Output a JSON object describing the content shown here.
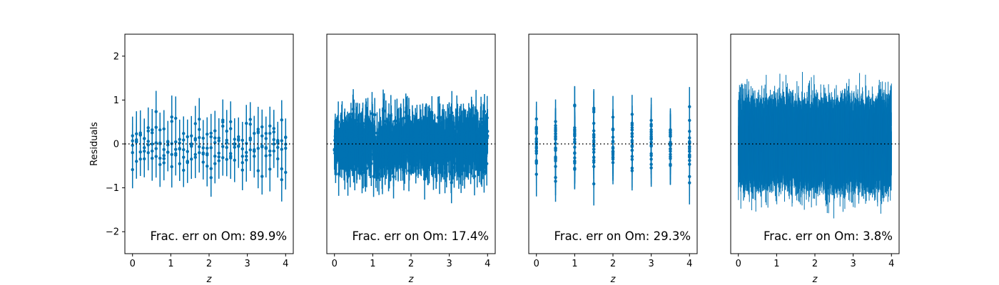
{
  "chart_data": [
    {
      "type": "scatter",
      "style": "errorbar",
      "xlabel": "z",
      "ylabel": "Residuals",
      "xlim": [
        -0.2,
        4.2
      ],
      "ylim": [
        -2.5,
        2.5
      ],
      "xticks": [
        "0",
        "1",
        "2",
        "3",
        "4"
      ],
      "yticks": [
        "−2",
        "−1",
        "0",
        "1",
        "2"
      ],
      "zero_line": "dotted",
      "annotation": "Frac. err on Om: 89.9%",
      "n_points": 200,
      "distinct_z": 40,
      "z_range": [
        0,
        4
      ],
      "errorbar_halfwidth_approx": 0.45,
      "residual_spread_approx": 0.5,
      "series_color": "#0072B2"
    },
    {
      "type": "scatter",
      "style": "errorbar",
      "xlabel": "z",
      "ylabel": "",
      "xlim": [
        -0.2,
        4.2
      ],
      "ylim": [
        -2.5,
        2.5
      ],
      "xticks": [
        "0",
        "1",
        "2",
        "3",
        "4"
      ],
      "zero_line": "dotted",
      "annotation": "Frac. err on Om: 17.4%",
      "n_points": 800,
      "distinct_z": 400,
      "z_range": [
        0,
        4
      ],
      "errorbar_halfwidth_approx": 0.45,
      "residual_spread_approx": 0.5,
      "series_color": "#0072B2"
    },
    {
      "type": "scatter",
      "style": "errorbar",
      "xlabel": "z",
      "ylabel": "",
      "xlim": [
        -0.2,
        4.2
      ],
      "ylim": [
        -2.5,
        2.5
      ],
      "xticks": [
        "0",
        "1",
        "2",
        "3",
        "4"
      ],
      "zero_line": "dotted",
      "annotation": "Frac. err on Om: 29.3%",
      "n_points": 200,
      "distinct_z": 9,
      "z_values": [
        0,
        0.5,
        1,
        1.5,
        2,
        2.5,
        3,
        3.5,
        4
      ],
      "errorbar_halfwidth_approx": 0.45,
      "residual_spread_approx": 0.5,
      "series_color": "#0072B2"
    },
    {
      "type": "scatter",
      "style": "errorbar",
      "xlabel": "z",
      "ylabel": "",
      "xlim": [
        -0.2,
        4.2
      ],
      "ylim": [
        -2.5,
        2.5
      ],
      "xticks": [
        "0",
        "1",
        "2",
        "3",
        "4"
      ],
      "zero_line": "dotted",
      "annotation": "Frac. err on Om: 3.8%",
      "n_points": 8000,
      "distinct_z": 8000,
      "z_range": [
        0,
        4
      ],
      "errorbar_halfwidth_approx": 0.45,
      "residual_spread_approx": 0.55,
      "series_color": "#0072B2"
    }
  ]
}
